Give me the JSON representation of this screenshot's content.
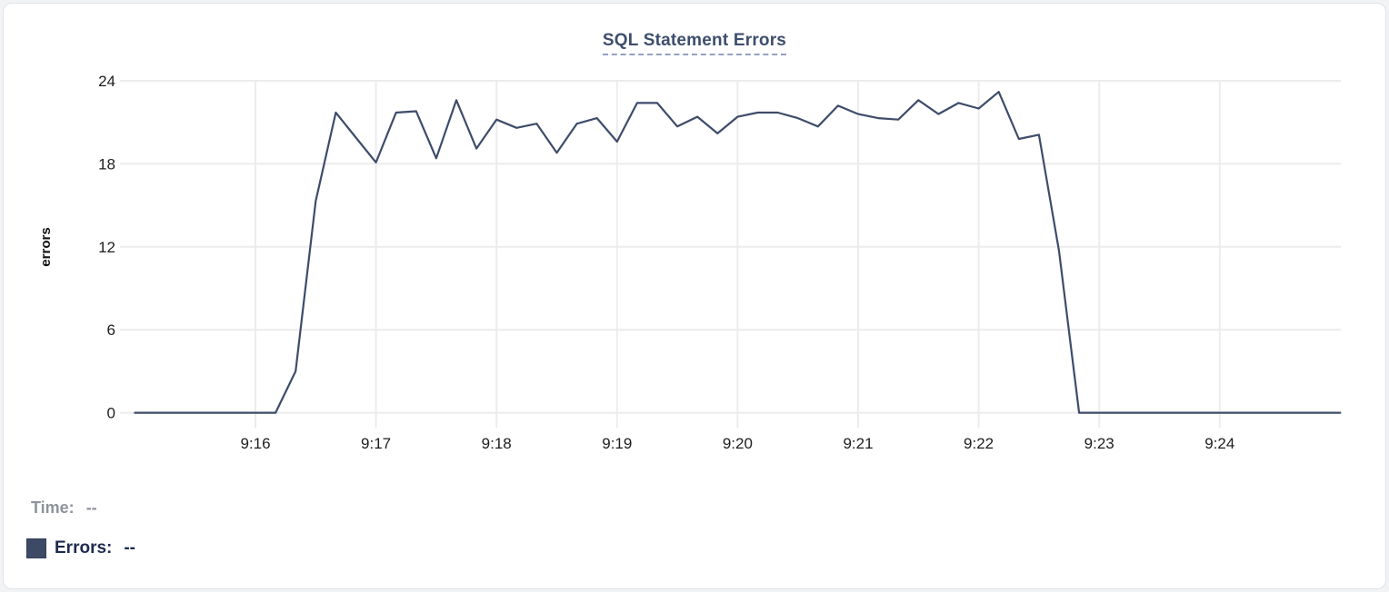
{
  "card": {
    "title": "SQL Statement Errors"
  },
  "tooltip": {
    "time_label": "Time:",
    "time_value": "--",
    "errors_label": "Errors:",
    "errors_value": "--"
  },
  "colors": {
    "line": "#3e4c6a",
    "title": "#3e4e6e",
    "grid": "#ececef",
    "tick_text": "#1d1d1f",
    "axis_label_text": "#111111",
    "time_text": "#8e939c",
    "errors_text": "#1e2b4f",
    "swatch": "#3d4a66",
    "title_underline": "#93a1c1",
    "card_border": "#e1e3e8"
  },
  "chart_data": {
    "type": "line",
    "title": "SQL Statement Errors",
    "xlabel": "",
    "ylabel": "errors",
    "ylim": [
      0,
      24
    ],
    "yticks": [
      0,
      6,
      12,
      18,
      24
    ],
    "xticks": [
      "9:16",
      "9:17",
      "9:18",
      "9:19",
      "9:20",
      "9:21",
      "9:22",
      "9:23",
      "9:24"
    ],
    "grid": true,
    "legend_position": "bottom-left",
    "sample_interval_seconds": 10,
    "series": [
      {
        "name": "Errors",
        "start_time": "9:15:00",
        "end_time": "9:25:00",
        "values": [
          0,
          0,
          0,
          0,
          0,
          0,
          0,
          0,
          3,
          15.3,
          21.7,
          19.9,
          18.1,
          21.7,
          21.8,
          18.4,
          22.6,
          19.1,
          21.2,
          20.6,
          20.9,
          18.8,
          20.9,
          21.3,
          19.6,
          22.4,
          22.4,
          20.7,
          21.4,
          20.2,
          21.4,
          21.7,
          21.7,
          21.3,
          20.7,
          22.2,
          21.6,
          21.3,
          21.2,
          22.6,
          21.6,
          22.4,
          22.0,
          23.2,
          19.8,
          20.1,
          11.7,
          0,
          0,
          0,
          0,
          0,
          0,
          0,
          0,
          0,
          0,
          0,
          0,
          0,
          0
        ]
      }
    ]
  }
}
